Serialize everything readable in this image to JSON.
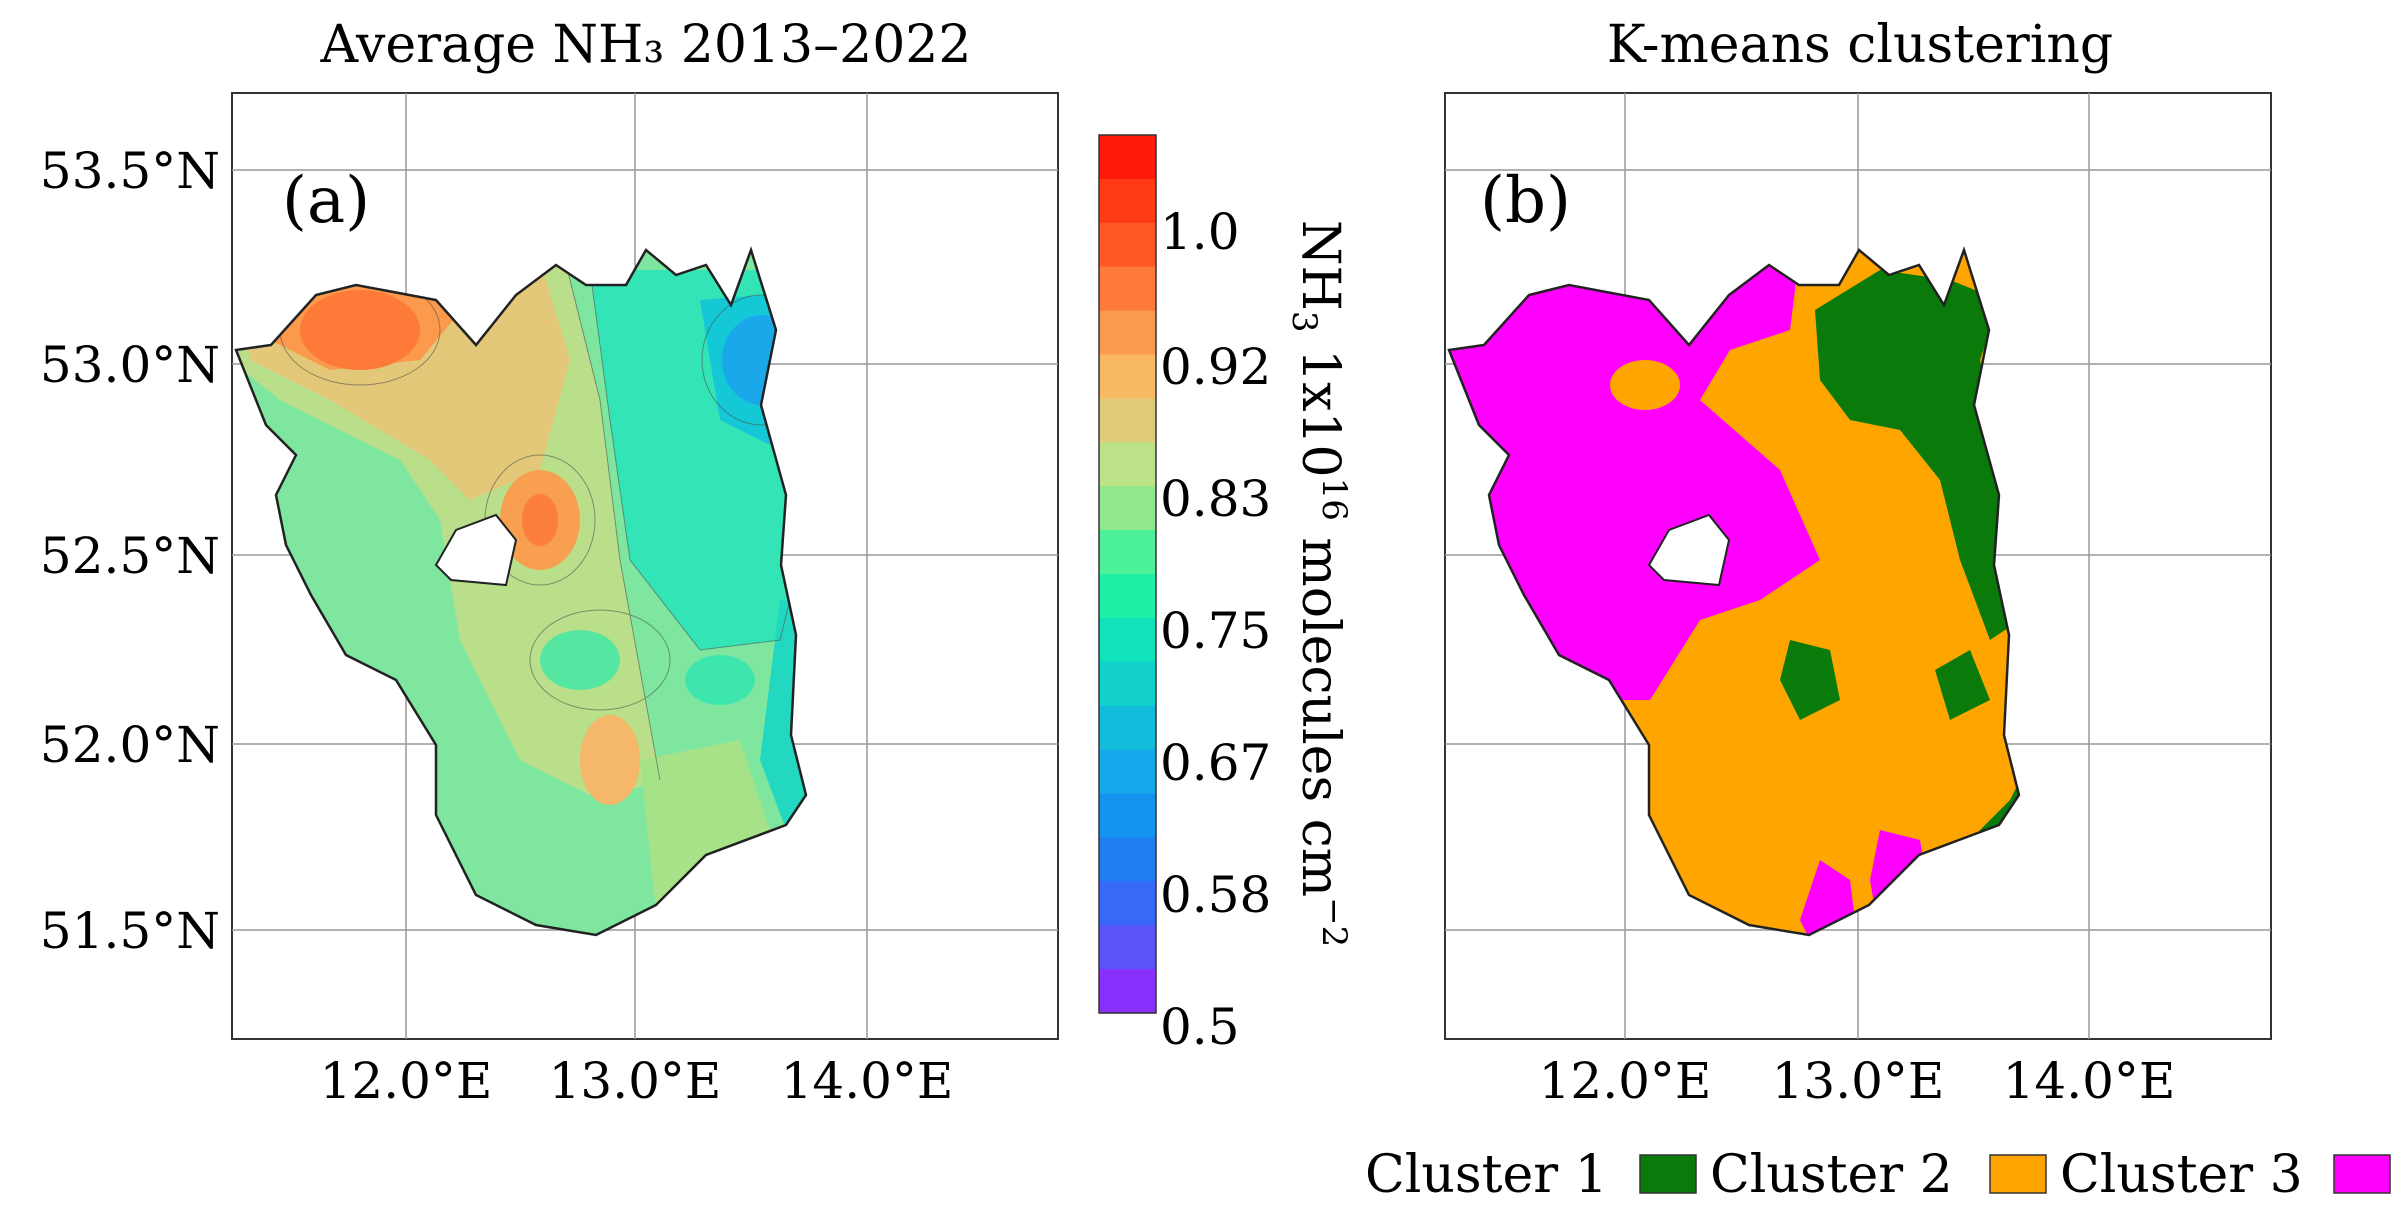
{
  "panel_a": {
    "title": "Average NH₃ 2013–2022",
    "label": "(a)",
    "lat_labels": [
      "53.5°N",
      "53.0°N",
      "52.5°N",
      "52.0°N",
      "51.5°N"
    ],
    "lon_labels": [
      "12.0°E",
      "13.0°E",
      "14.0°E"
    ],
    "colorbar": {
      "ticks": [
        "1.0",
        "0.92",
        "0.83",
        "0.75",
        "0.67",
        "0.58",
        "0.5"
      ],
      "label_parts": [
        "NH",
        "3",
        " 1x10",
        "16",
        " molecules cm",
        "−2"
      ],
      "colors": [
        "#ff1a08",
        "#ff3a14",
        "#ff5a24",
        "#fd7a38",
        "#fb9a4c",
        "#f9b964",
        "#e0cc78",
        "#bce288",
        "#8fe98c",
        "#4cf29a",
        "#1ef0a6",
        "#10e2bc",
        "#12d0cc",
        "#14bcdc",
        "#16a8ea",
        "#1494f0",
        "#1f7df4",
        "#3868f6",
        "#5a54f8",
        "#8a30fc"
      ]
    }
  },
  "panel_b": {
    "title": "K-means clustering",
    "label": "(b)",
    "lon_labels": [
      "12.0°E",
      "13.0°E",
      "14.0°E"
    ],
    "legend": [
      {
        "label": "Cluster 1",
        "color": "#0a7a0a"
      },
      {
        "label": "Cluster 2",
        "color": "#ffa500"
      },
      {
        "label": "Cluster 3",
        "color": "#ff00ff"
      }
    ]
  }
}
